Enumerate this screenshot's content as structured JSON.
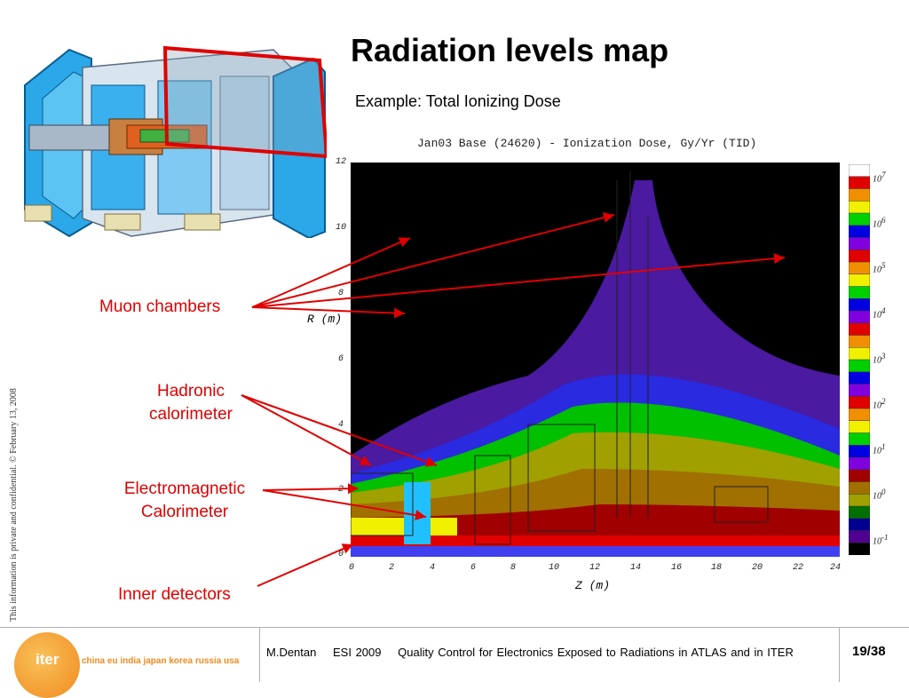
{
  "slide": {
    "title": "Radiation levels map",
    "subtitle": "Example: Total Ionizing Dose",
    "side_note": "This information is private and confidential.  © February 13, 2008"
  },
  "labels": {
    "muon": "Muon chambers",
    "hadronic_1": "Hadronic",
    "hadronic_2": "calorimeter",
    "em_1": "Electromagnetic",
    "em_2": "Calorimeter",
    "inner": "Inner detectors"
  },
  "plot": {
    "title": "Jan03 Base (24620) - Ionization Dose, Gy/Yr (TID)",
    "xlabel": "Z (m)",
    "ylabel": "R (m)",
    "x_ticks": [
      "0",
      "2",
      "4",
      "6",
      "8",
      "10",
      "12",
      "14",
      "16",
      "18",
      "20",
      "22",
      "24"
    ],
    "y_ticks": [
      "0",
      "2",
      "4",
      "6",
      "8",
      "10",
      "12"
    ],
    "colorbar_base": "10",
    "colorbar_exponents": [
      "7",
      "6",
      "5",
      "4",
      "3",
      "2",
      "1",
      "0",
      "-1"
    ],
    "colorbar_colors": [
      "#ffffff",
      "#e00000",
      "#f09000",
      "#f0f000",
      "#00d000",
      "#0000e0",
      "#8000e0",
      "#e00000",
      "#f09000",
      "#f0f000",
      "#00d000",
      "#0000e0",
      "#8000e0",
      "#e00000",
      "#f09000",
      "#f0f000",
      "#00d000",
      "#0000e0",
      "#8000e0",
      "#e00000",
      "#f09000",
      "#f0f000",
      "#00d000",
      "#0000e0",
      "#8000e0",
      "#a00000",
      "#a07000",
      "#a0a000",
      "#007000",
      "#000090",
      "#500090",
      "#000000"
    ],
    "zones": [
      "black",
      "purple",
      "blue",
      "green",
      "yellow",
      "orange",
      "red"
    ]
  },
  "footer": {
    "author": "M.Dentan",
    "event": "ESI 2009",
    "talk": "Quality Control for Electronics Exposed to Radiations in ATLAS and in ITER",
    "page": "19/38",
    "logo_word": "iter",
    "logo_partners": "china eu india japan korea russia usa"
  },
  "colors": {
    "accent_red": "#e00000",
    "logo_orange": "#f08a1e"
  }
}
